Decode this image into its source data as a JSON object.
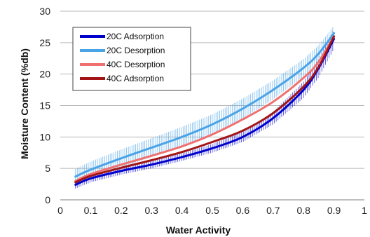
{
  "chart_data": {
    "type": "line",
    "xlabel": "Water Activity",
    "ylabel": "Moisture Content (%db)",
    "xlim": [
      0,
      1
    ],
    "ylim": [
      0,
      30
    ],
    "xticks": [
      "0",
      "0.1",
      "0.2",
      "0.3",
      "0.4",
      "0.5",
      "0.6",
      "0.7",
      "0.8",
      "0.9",
      "1"
    ],
    "yticks": [
      "0",
      "5",
      "10",
      "15",
      "20",
      "25",
      "30"
    ],
    "grid": "horizontal",
    "legend_position": "top-left",
    "error_bars": true,
    "series": [
      {
        "name": "20C Adsorption",
        "color": "#0000cc",
        "x": [
          0.05,
          0.1,
          0.2,
          0.3,
          0.4,
          0.5,
          0.6,
          0.7,
          0.8,
          0.85,
          0.9
        ],
        "y": [
          2.4,
          3.4,
          4.6,
          5.6,
          6.8,
          8.2,
          10.0,
          13.0,
          17.5,
          21.0,
          25.6
        ],
        "err": [
          0.6,
          0.6,
          0.6,
          0.6,
          0.6,
          0.7,
          0.8,
          1.0,
          1.3,
          1.5,
          1.6
        ]
      },
      {
        "name": "20C Desorption",
        "color": "#4aa3e6",
        "x": [
          0.05,
          0.1,
          0.2,
          0.3,
          0.4,
          0.5,
          0.6,
          0.7,
          0.8,
          0.85,
          0.9
        ],
        "y": [
          3.7,
          4.8,
          6.6,
          8.3,
          10.0,
          12.0,
          14.5,
          17.5,
          21.0,
          23.3,
          26.5
        ],
        "err": [
          1.2,
          1.3,
          1.4,
          1.5,
          1.6,
          1.6,
          1.6,
          1.5,
          1.4,
          1.3,
          1.2
        ]
      },
      {
        "name": "40C Desorption",
        "color": "#f07070",
        "x": [
          0.05,
          0.1,
          0.2,
          0.3,
          0.4,
          0.5,
          0.6,
          0.7,
          0.8,
          0.85,
          0.9
        ],
        "y": [
          3.0,
          4.1,
          5.6,
          7.0,
          8.5,
          10.4,
          12.8,
          15.6,
          19.4,
          22.0,
          26.0
        ],
        "err": [
          0,
          0,
          0,
          0,
          0,
          0,
          0,
          0,
          0,
          0,
          0
        ]
      },
      {
        "name": "40C Adsorption",
        "color": "#a31515",
        "x": [
          0.05,
          0.1,
          0.2,
          0.3,
          0.4,
          0.5,
          0.6,
          0.7,
          0.8,
          0.85,
          0.9
        ],
        "y": [
          2.8,
          3.8,
          5.1,
          6.3,
          7.6,
          9.2,
          11.0,
          13.8,
          18.0,
          21.2,
          26.0
        ],
        "err": [
          0,
          0,
          0,
          0,
          0,
          0,
          0,
          0,
          0,
          0,
          0
        ]
      }
    ]
  }
}
